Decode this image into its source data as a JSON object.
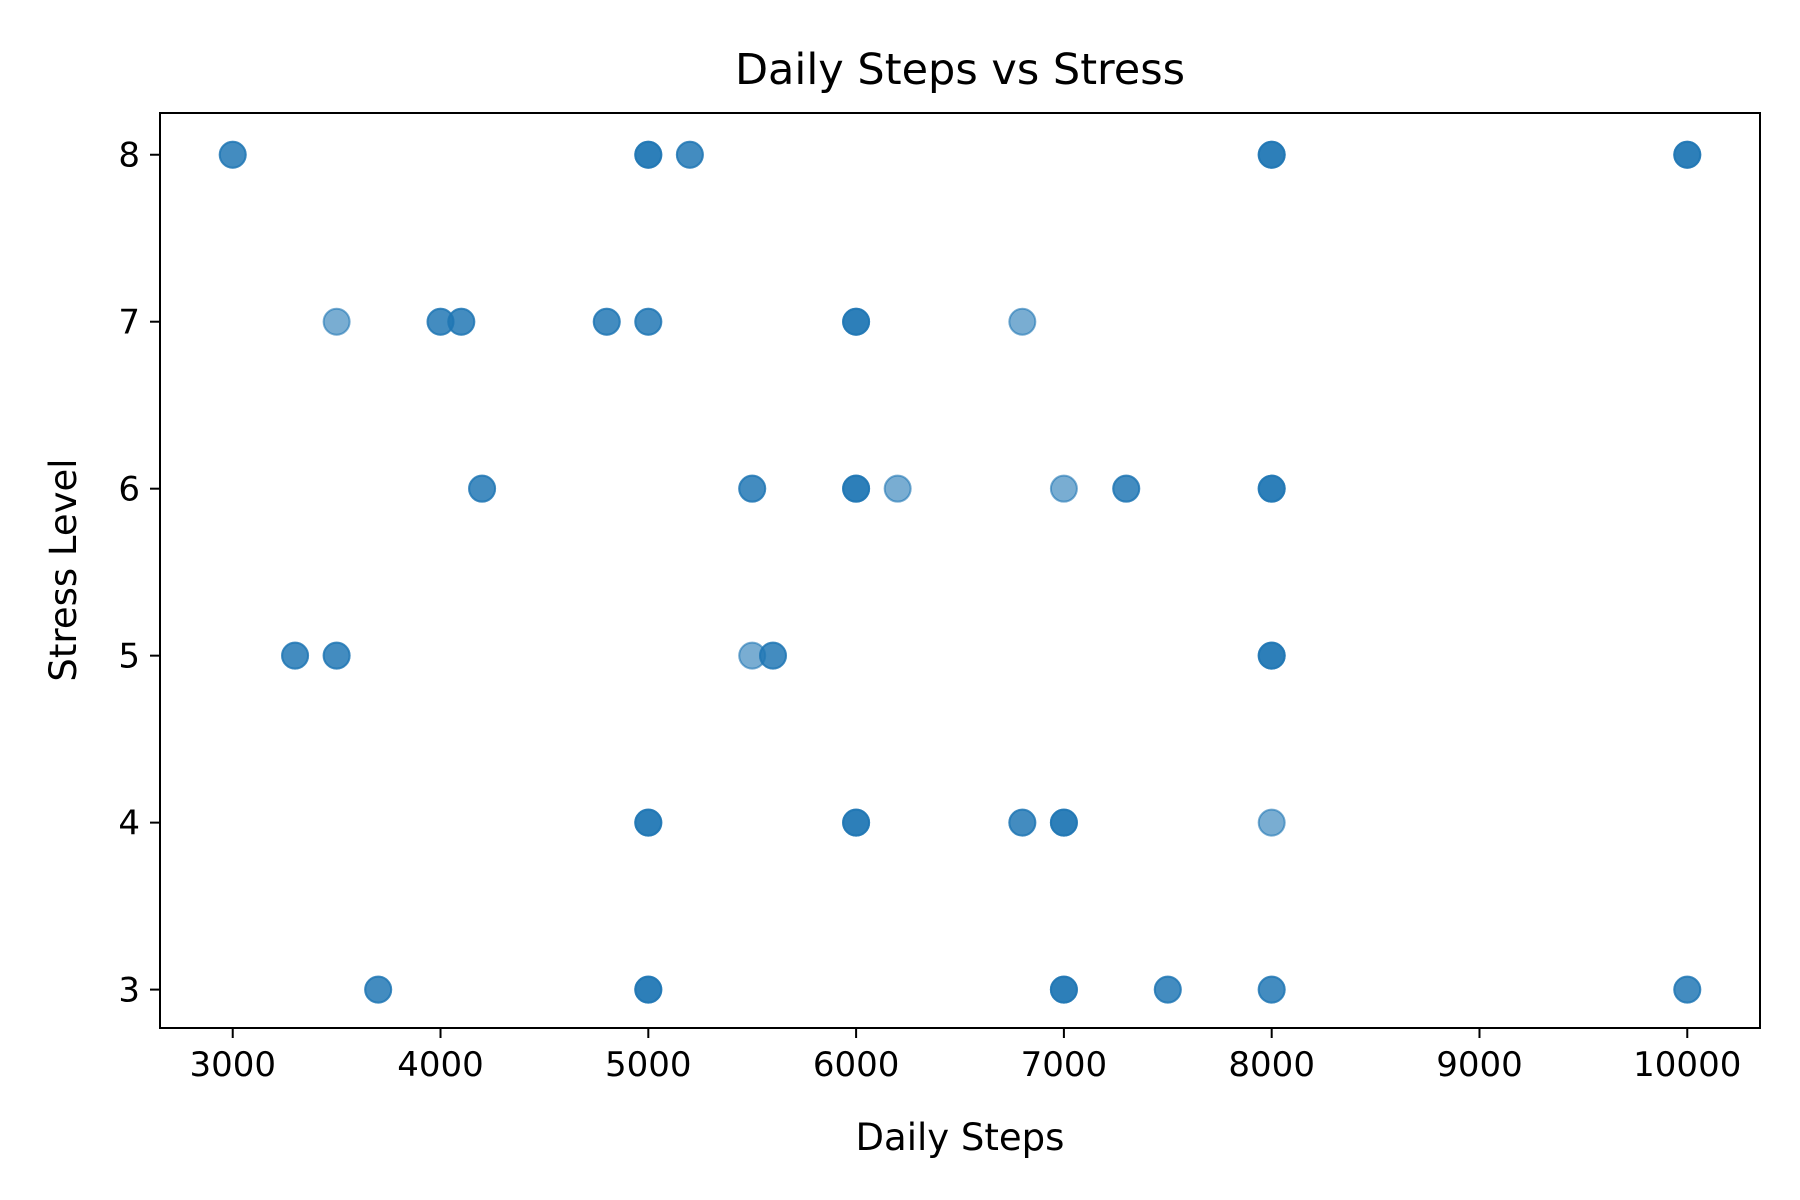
{
  "chart_data": {
    "type": "scatter",
    "title": "Daily Steps vs Stress",
    "xlabel": "Daily Steps",
    "ylabel": "Stress Level",
    "xlim": [
      2650,
      10350
    ],
    "ylim": [
      2.77,
      8.25
    ],
    "xticks": [
      3000,
      4000,
      5000,
      6000,
      7000,
      8000,
      9000,
      10000
    ],
    "yticks": [
      3,
      4,
      5,
      6,
      7,
      8
    ],
    "grid": false,
    "marker_color": "#1f77b4",
    "marker_alpha": 0.6,
    "points": [
      [
        3000,
        8
      ],
      [
        3000,
        8
      ],
      [
        5000,
        8
      ],
      [
        5000,
        8
      ],
      [
        5000,
        8
      ],
      [
        5200,
        8
      ],
      [
        5200,
        8
      ],
      [
        8000,
        8
      ],
      [
        8000,
        8
      ],
      [
        8000,
        8
      ],
      [
        10000,
        8
      ],
      [
        10000,
        8
      ],
      [
        10000,
        8
      ],
      [
        3500,
        7
      ],
      [
        4000,
        7
      ],
      [
        4000,
        7
      ],
      [
        4100,
        7
      ],
      [
        4100,
        7
      ],
      [
        4800,
        7
      ],
      [
        4800,
        7
      ],
      [
        5000,
        7
      ],
      [
        5000,
        7
      ],
      [
        6000,
        7
      ],
      [
        6000,
        7
      ],
      [
        6000,
        7
      ],
      [
        6800,
        7
      ],
      [
        4200,
        6
      ],
      [
        4200,
        6
      ],
      [
        5500,
        6
      ],
      [
        5500,
        6
      ],
      [
        6000,
        6
      ],
      [
        6000,
        6
      ],
      [
        6000,
        6
      ],
      [
        6200,
        6
      ],
      [
        7000,
        6
      ],
      [
        7300,
        6
      ],
      [
        7300,
        6
      ],
      [
        8000,
        6
      ],
      [
        8000,
        6
      ],
      [
        8000,
        6
      ],
      [
        3300,
        5
      ],
      [
        3300,
        5
      ],
      [
        3500,
        5
      ],
      [
        3500,
        5
      ],
      [
        5500,
        5
      ],
      [
        5600,
        5
      ],
      [
        5600,
        5
      ],
      [
        8000,
        5
      ],
      [
        8000,
        5
      ],
      [
        8000,
        5
      ],
      [
        5000,
        4
      ],
      [
        5000,
        4
      ],
      [
        5000,
        4
      ],
      [
        6000,
        4
      ],
      [
        6000,
        4
      ],
      [
        6000,
        4
      ],
      [
        6800,
        4
      ],
      [
        6800,
        4
      ],
      [
        7000,
        4
      ],
      [
        7000,
        4
      ],
      [
        7000,
        4
      ],
      [
        8000,
        4
      ],
      [
        3700,
        3
      ],
      [
        3700,
        3
      ],
      [
        5000,
        3
      ],
      [
        5000,
        3
      ],
      [
        5000,
        3
      ],
      [
        7000,
        3
      ],
      [
        7000,
        3
      ],
      [
        7000,
        3
      ],
      [
        7500,
        3
      ],
      [
        7500,
        3
      ],
      [
        8000,
        3
      ],
      [
        8000,
        3
      ],
      [
        10000,
        3
      ],
      [
        10000,
        3
      ]
    ]
  }
}
